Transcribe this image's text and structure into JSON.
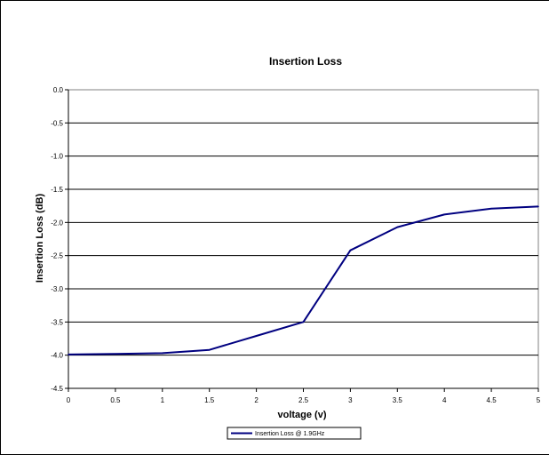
{
  "chart_data": {
    "type": "line",
    "title": "Insertion Loss",
    "xlabel": "voltage (v)",
    "ylabel": "Insertion Loss (dB)",
    "xlim": [
      0,
      5
    ],
    "ylim": [
      -4.5,
      0
    ],
    "x_ticks": [
      "0",
      "0.5",
      "1",
      "1.5",
      "2",
      "2.5",
      "3",
      "3.5",
      "4",
      "4.5",
      "5"
    ],
    "y_ticks": [
      "0.0",
      "-0.5",
      "-1.0",
      "-1.5",
      "-2.0",
      "-2.5",
      "-3.0",
      "-3.5",
      "-4.0",
      "-4.5"
    ],
    "grid": "horizontal",
    "legend_position": "bottom",
    "series": [
      {
        "name": "Insertion Loss @ 1.9GHz",
        "color": "#000080",
        "x": [
          0,
          0.5,
          1,
          1.5,
          2,
          2.5,
          3,
          3.5,
          4,
          4.5,
          5
        ],
        "values": [
          -3.99,
          -3.98,
          -3.97,
          -3.92,
          -3.71,
          -3.5,
          -2.42,
          -2.07,
          -1.88,
          -1.79,
          -1.76
        ]
      }
    ]
  }
}
